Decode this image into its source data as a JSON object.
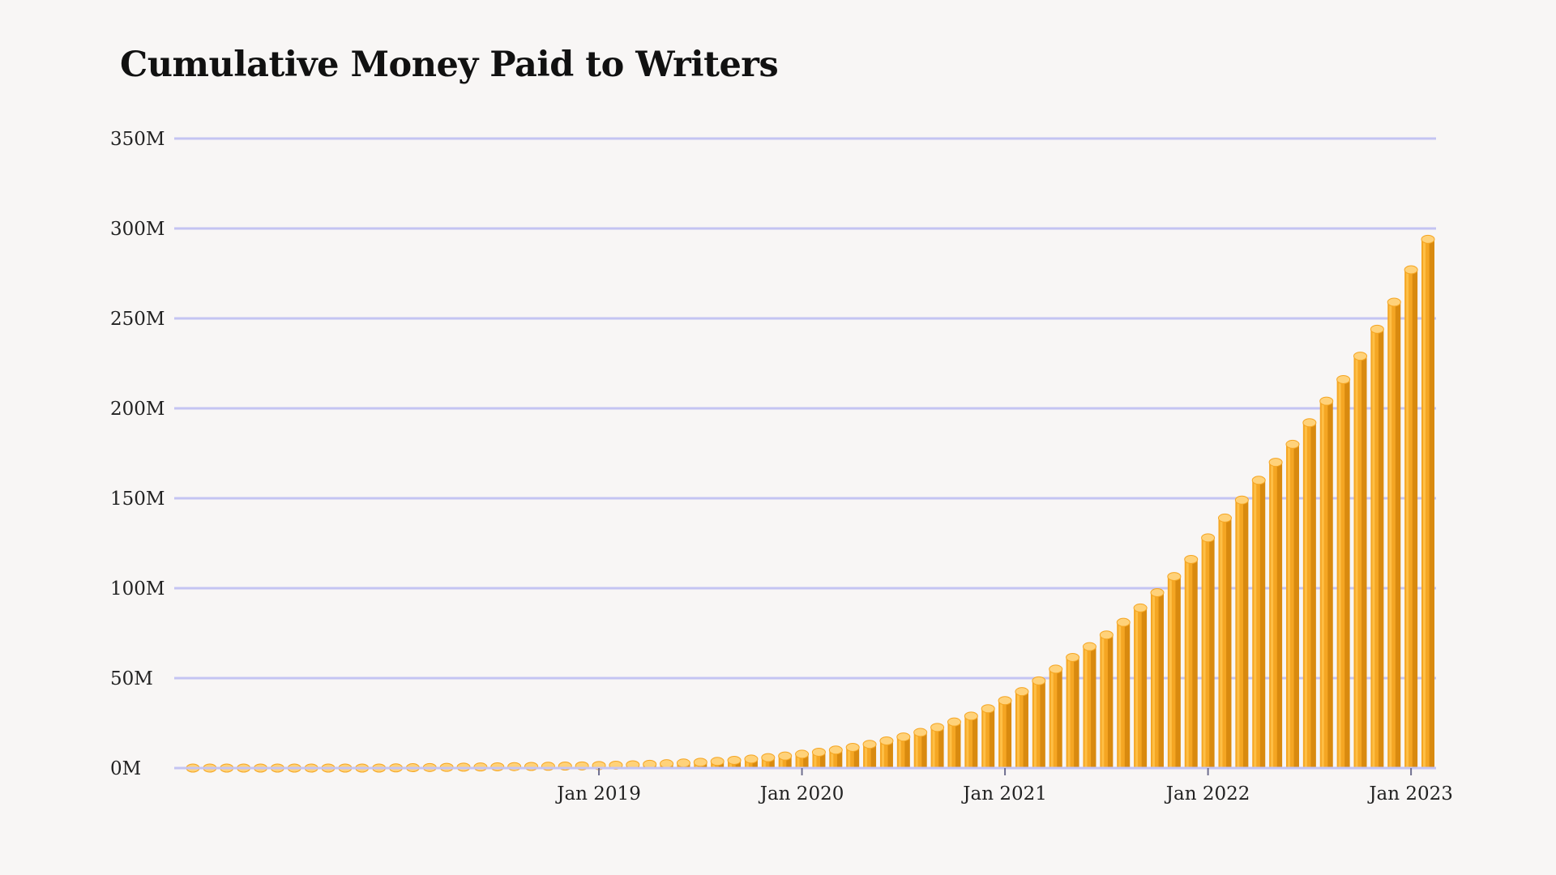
{
  "title": "Cumulative Money Paid to Writers",
  "chart_data": {
    "type": "bar",
    "title": "Cumulative Money Paid to Writers",
    "xlabel": "",
    "ylabel": "",
    "ylim": [
      0,
      350
    ],
    "yticks": [
      {
        "value": 0,
        "label": "0M"
      },
      {
        "value": 50,
        "label": "50M"
      },
      {
        "value": 100,
        "label": "100M"
      },
      {
        "value": 150,
        "label": "150M"
      },
      {
        "value": 200,
        "label": "200M"
      },
      {
        "value": 250,
        "label": "250M"
      },
      {
        "value": 300,
        "label": "300M"
      },
      {
        "value": 350,
        "label": "350M"
      }
    ],
    "xticks": [
      {
        "value": "2019-01",
        "label": "Jan 2019"
      },
      {
        "value": "2020-01",
        "label": "Jan 2020"
      },
      {
        "value": "2021-01",
        "label": "Jan 2021"
      },
      {
        "value": "2022-01",
        "label": "Jan 2022"
      },
      {
        "value": "2023-01",
        "label": "Jan 2023"
      }
    ],
    "grid": true,
    "categories": [
      "2017-01",
      "2017-02",
      "2017-03",
      "2017-04",
      "2017-05",
      "2017-06",
      "2017-07",
      "2017-08",
      "2017-09",
      "2017-10",
      "2017-11",
      "2017-12",
      "2018-01",
      "2018-02",
      "2018-03",
      "2018-04",
      "2018-05",
      "2018-06",
      "2018-07",
      "2018-08",
      "2018-09",
      "2018-10",
      "2018-11",
      "2018-12",
      "2019-01",
      "2019-02",
      "2019-03",
      "2019-04",
      "2019-05",
      "2019-06",
      "2019-07",
      "2019-08",
      "2019-09",
      "2019-10",
      "2019-11",
      "2019-12",
      "2020-01",
      "2020-02",
      "2020-03",
      "2020-04",
      "2020-05",
      "2020-06",
      "2020-07",
      "2020-08",
      "2020-09",
      "2020-10",
      "2020-11",
      "2020-12",
      "2021-01",
      "2021-02",
      "2021-03",
      "2021-04",
      "2021-05",
      "2021-06",
      "2021-07",
      "2021-08",
      "2021-09",
      "2021-10",
      "2021-11",
      "2021-12",
      "2022-01",
      "2022-02",
      "2022-03",
      "2022-04",
      "2022-05",
      "2022-06",
      "2022-07",
      "2022-08",
      "2022-09",
      "2022-10",
      "2022-11",
      "2022-12",
      "2023-01",
      "2023-02"
    ],
    "values": [
      0,
      0,
      0,
      0,
      0,
      0,
      0,
      0,
      0,
      0,
      0,
      0,
      0.1,
      0.2,
      0.3,
      0.4,
      0.5,
      0.6,
      0.7,
      0.8,
      0.9,
      1.0,
      1.1,
      1.2,
      1.4,
      1.6,
      1.8,
      2.1,
      2.4,
      2.8,
      3.2,
      3.7,
      4.3,
      5.0,
      5.8,
      6.7,
      7.7,
      8.8,
      10.0,
      11.5,
      13.2,
      15.1,
      17.3,
      19.8,
      22.6,
      25.6,
      28.9,
      33.0,
      37.5,
      42.5,
      48.5,
      55.0,
      61.5,
      67.5,
      74.0,
      81.0,
      89.0,
      97.5,
      106.5,
      116.0,
      128.0,
      139.0,
      149.0,
      160.0,
      170.0,
      180.0,
      192.0,
      204.0,
      216.0,
      229.0,
      244.0,
      259.0,
      277.0,
      294.0
    ],
    "colors": {
      "bar_front": "#f5a623",
      "bar_side": "#d98a0f",
      "bar_top": "#ffd27a",
      "bar_highlight": "#ffc24a",
      "grid": "#c4c4f2",
      "axis": "#c4c4f2",
      "tick_mark": "#6f6f8f",
      "text": "#222222"
    }
  }
}
